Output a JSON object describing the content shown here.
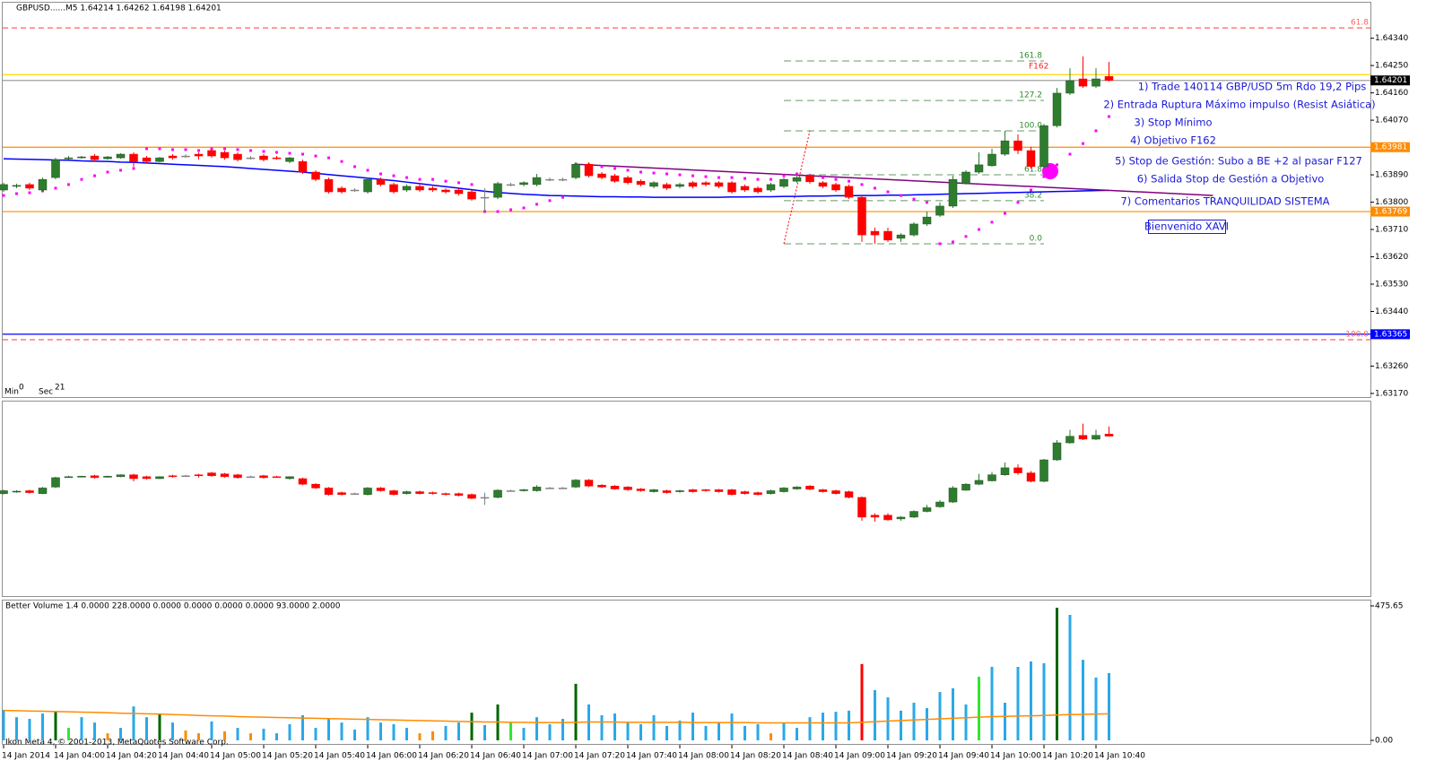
{
  "title": "GBPUSD......M5 1.64214 1.64262 1.64198 1.64201",
  "chart_data": {
    "type": "candlestick",
    "categories": [
      "14 Jan 2014",
      null,
      null,
      null,
      "14 Jan 04:00",
      null,
      null,
      null,
      "14 Jan 04:20",
      null,
      null,
      null,
      "14 Jan 04:40",
      null,
      null,
      null,
      "14 Jan 05:00",
      null,
      null,
      null,
      "14 Jan 05:20",
      null,
      null,
      null,
      "14 Jan 05:40",
      null,
      null,
      null,
      "14 Jan 06:00",
      null,
      null,
      null,
      "14 Jan 06:20",
      null,
      null,
      null,
      "14 Jan 06:40",
      null,
      null,
      null,
      "14 Jan 07:00",
      null,
      null,
      null,
      "14 Jan 07:20",
      null,
      null,
      null,
      "14 Jan 07:40",
      null,
      null,
      null,
      "14 Jan 08:00",
      null,
      null,
      null,
      "14 Jan 08:20",
      null,
      null,
      null,
      "14 Jan 08:40",
      null,
      null,
      null,
      "14 Jan 09:00",
      null,
      null,
      null,
      "14 Jan 09:20",
      null,
      null,
      null,
      "14 Jan 09:40",
      null,
      null,
      null,
      "14 Jan 10:00",
      null,
      null,
      null,
      "14 Jan 10:20",
      null,
      null,
      null,
      "14 Jan 10:40",
      null
    ],
    "open": [
      1.6384,
      1.63852,
      1.63858,
      1.6384,
      1.63881,
      1.63943,
      1.63946,
      1.63952,
      1.63943,
      1.63946,
      1.63958,
      1.63946,
      1.63934,
      1.63952,
      1.63952,
      1.63958,
      1.6397,
      1.63964,
      1.63958,
      1.63946,
      1.63952,
      1.63946,
      1.63934,
      1.63934,
      1.63899,
      1.63875,
      1.63846,
      1.6384,
      1.63834,
      1.63875,
      1.63858,
      1.6384,
      1.63852,
      1.63846,
      1.6384,
      1.6384,
      1.63834,
      1.63816,
      1.63816,
      1.63858,
      1.63858,
      1.63858,
      1.63875,
      1.63875,
      1.63881,
      1.63925,
      1.63893,
      1.63887,
      1.63881,
      1.63869,
      1.63852,
      1.63858,
      1.63852,
      1.63864,
      1.63864,
      1.63864,
      1.63864,
      1.63852,
      1.63846,
      1.6384,
      1.63852,
      1.63869,
      1.63887,
      1.63864,
      1.63858,
      1.63852,
      1.63816,
      1.63704,
      1.63704,
      1.63681,
      1.63692,
      1.63728,
      1.63757,
      1.63787,
      1.63861,
      1.63899,
      1.6392,
      1.63958,
      1.64002,
      1.6397,
      1.63917,
      1.64052,
      1.64159,
      1.64206,
      1.64182,
      1.64214
    ],
    "high": [
      1.63864,
      1.63861,
      1.63864,
      1.63881,
      1.63946,
      1.63952,
      1.63952,
      1.63958,
      1.63952,
      1.63961,
      1.63964,
      1.63952,
      1.63949,
      1.63958,
      1.63958,
      1.63964,
      1.63976,
      1.6397,
      1.63964,
      1.63952,
      1.63958,
      1.63952,
      1.63949,
      1.6394,
      1.63905,
      1.63881,
      1.63852,
      1.63846,
      1.63881,
      1.63881,
      1.63864,
      1.63858,
      1.63858,
      1.63852,
      1.63846,
      1.63846,
      1.6384,
      1.63846,
      1.63867,
      1.63864,
      1.63869,
      1.63893,
      1.63881,
      1.63881,
      1.63931,
      1.63931,
      1.63899,
      1.63893,
      1.63887,
      1.63875,
      1.63869,
      1.63864,
      1.63864,
      1.63869,
      1.63869,
      1.63869,
      1.63869,
      1.63858,
      1.63852,
      1.63864,
      1.63881,
      1.63887,
      1.63893,
      1.63869,
      1.63864,
      1.63858,
      1.63822,
      1.63716,
      1.63716,
      1.63698,
      1.63734,
      1.63769,
      1.63799,
      1.63887,
      1.63905,
      1.63964,
      1.63976,
      1.64035,
      1.64023,
      1.63982,
      1.64058,
      1.64176,
      1.64241,
      1.6428,
      1.64241,
      1.64262
    ],
    "low": [
      1.63834,
      1.63846,
      1.6384,
      1.63837,
      1.63875,
      1.6394,
      1.63943,
      1.63934,
      1.6394,
      1.63943,
      1.63917,
      1.63928,
      1.63931,
      1.6394,
      1.63946,
      1.6394,
      1.63946,
      1.6394,
      1.63934,
      1.6394,
      1.63934,
      1.6394,
      1.63928,
      1.63893,
      1.63869,
      1.63828,
      1.63828,
      1.63834,
      1.63828,
      1.63852,
      1.63828,
      1.63834,
      1.63834,
      1.63834,
      1.63828,
      1.63822,
      1.63805,
      1.63769,
      1.6381,
      1.63852,
      1.63852,
      1.63852,
      1.63869,
      1.63869,
      1.63875,
      1.63881,
      1.63875,
      1.63864,
      1.63858,
      1.63852,
      1.63846,
      1.6384,
      1.63846,
      1.63846,
      1.63852,
      1.63846,
      1.63828,
      1.63834,
      1.63828,
      1.63834,
      1.63846,
      1.63864,
      1.63861,
      1.63846,
      1.63834,
      1.6381,
      1.63669,
      1.63663,
      1.63669,
      1.63669,
      1.63687,
      1.63722,
      1.63751,
      1.63781,
      1.63858,
      1.63893,
      1.63917,
      1.63952,
      1.63958,
      1.63911,
      1.63911,
      1.64046,
      1.64153,
      1.64176,
      1.64176,
      1.64198
    ],
    "close": [
      1.63858,
      1.63855,
      1.63846,
      1.63875,
      1.6394,
      1.63946,
      1.63949,
      1.6394,
      1.63949,
      1.63958,
      1.63934,
      1.63934,
      1.63946,
      1.63946,
      1.63952,
      1.63952,
      1.63952,
      1.63946,
      1.6394,
      1.63946,
      1.6394,
      1.63943,
      1.63946,
      1.63899,
      1.63875,
      1.63834,
      1.63834,
      1.6384,
      1.63875,
      1.63858,
      1.63834,
      1.63852,
      1.6384,
      1.6384,
      1.63834,
      1.63828,
      1.6381,
      1.63816,
      1.63861,
      1.63858,
      1.63864,
      1.63881,
      1.63875,
      1.63875,
      1.63925,
      1.63887,
      1.63881,
      1.63869,
      1.63864,
      1.63858,
      1.63864,
      1.63846,
      1.63858,
      1.63852,
      1.63858,
      1.63852,
      1.63834,
      1.6384,
      1.63834,
      1.63858,
      1.63875,
      1.63881,
      1.63867,
      1.63852,
      1.6384,
      1.63816,
      1.63692,
      1.63692,
      1.63675,
      1.63692,
      1.63728,
      1.63751,
      1.63787,
      1.63875,
      1.63899,
      1.63923,
      1.63958,
      1.64002,
      1.6397,
      1.63917,
      1.64052,
      1.64159,
      1.642,
      1.64182,
      1.64206,
      1.64201
    ],
    "up_color": "#2e7d2e",
    "down_color": "#ff0000",
    "ylim": [
      1.63158,
      1.64457
    ],
    "yticks": [
      {
        "value": 1.6434,
        "label": "1.64340"
      },
      {
        "value": 1.6425,
        "label": "1.64250"
      },
      {
        "value": 1.6416,
        "label": "1.64160"
      },
      {
        "value": 1.6407,
        "label": "1.64070"
      },
      {
        "value": 1.6389,
        "label": "1.63890"
      },
      {
        "value": 1.638,
        "label": "1.63800"
      },
      {
        "value": 1.6371,
        "label": "1.63710"
      },
      {
        "value": 1.6362,
        "label": "1.63620"
      },
      {
        "value": 1.6353,
        "label": "1.63530"
      },
      {
        "value": 1.6344,
        "label": "1.63440"
      },
      {
        "value": 1.6326,
        "label": "1.63260"
      },
      {
        "value": 1.6317,
        "label": "1.63170"
      }
    ],
    "moving_average": {
      "color": "#0000ff",
      "values": [
        1.63943,
        1.63942,
        1.63941,
        1.6394,
        1.63939,
        1.63938,
        1.63936,
        1.63935,
        1.63934,
        1.63932,
        1.63931,
        1.63929,
        1.63927,
        1.63925,
        1.63923,
        1.63921,
        1.63919,
        1.63917,
        1.63914,
        1.63911,
        1.63908,
        1.63905,
        1.63902,
        1.63899,
        1.63895,
        1.63891,
        1.63887,
        1.63883,
        1.63879,
        1.63875,
        1.63871,
        1.63866,
        1.63861,
        1.63856,
        1.63851,
        1.63846,
        1.63841,
        1.63836,
        1.63832,
        1.63829,
        1.63826,
        1.63824,
        1.63822,
        1.63821,
        1.6382,
        1.63819,
        1.63818,
        1.63818,
        1.63817,
        1.63817,
        1.63816,
        1.63816,
        1.63816,
        1.63816,
        1.63816,
        1.63816,
        1.63817,
        1.63817,
        1.63818,
        1.63818,
        1.63819,
        1.63819,
        1.6382,
        1.6382,
        1.63821,
        1.63821,
        1.63822,
        1.63822,
        1.63823,
        1.63823,
        1.63824,
        1.63825,
        1.63826,
        1.63827,
        1.63828,
        1.63829,
        1.6383,
        1.63831,
        1.63832,
        1.63833,
        1.63834,
        1.63835,
        1.63836,
        1.63837,
        1.63838,
        1.63839
      ]
    },
    "trendline": {
      "color": "#800080",
      "x": [
        44,
        93
      ],
      "y": [
        1.63925,
        1.63822
      ]
    },
    "sar": {
      "color": "#ff00ff",
      "values": [
        1.63822,
        1.63828,
        1.63831,
        1.63837,
        1.63846,
        1.63858,
        1.63875,
        1.63887,
        1.63899,
        1.63905,
        1.63911,
        1.63976,
        1.63976,
        1.63973,
        1.63973,
        1.6397,
        1.63976,
        1.63976,
        1.63973,
        1.6397,
        1.63967,
        1.63964,
        1.63961,
        1.63958,
        1.63952,
        1.63946,
        1.63934,
        1.63917,
        1.63905,
        1.63893,
        1.63887,
        1.63881,
        1.63875,
        1.63875,
        1.63869,
        1.63864,
        1.63858,
        1.63769,
        1.63769,
        1.63775,
        1.63781,
        1.63793,
        1.63805,
        1.63816,
        1.63925,
        1.63923,
        1.63917,
        1.63911,
        1.63905,
        1.63899,
        1.63896,
        1.63893,
        1.6389,
        1.63887,
        1.63884,
        1.63881,
        1.63881,
        1.63878,
        1.63875,
        1.63875,
        1.63887,
        1.63893,
        1.63887,
        1.63881,
        1.63875,
        1.63869,
        1.63858,
        1.63846,
        1.63834,
        1.63822,
        1.6381,
        1.63799,
        1.63663,
        1.63669,
        1.63687,
        1.6371,
        1.63734,
        1.63763,
        1.63799,
        1.6384,
        1.63884,
        1.63923,
        1.63958,
        1.63993,
        1.64035,
        1.64082
      ]
    },
    "levels": [
      {
        "price": 1.64374,
        "color": "#ff6060",
        "dashed": true,
        "label": "61.8"
      },
      {
        "price": 1.6422,
        "color": "#ffd700",
        "dashed": false
      },
      {
        "price": 1.64201,
        "color": "#a0a0a0",
        "dashed": false,
        "tag": "#000000"
      },
      {
        "price": 1.63981,
        "color": "#ff8c00",
        "dashed": false,
        "tag": "#ff8c00"
      },
      {
        "price": 1.63769,
        "color": "#ff8c00",
        "dashed": false,
        "tag": "#ff8c00"
      },
      {
        "price": 1.63365,
        "color": "#0000ff",
        "dashed": false,
        "tag": "#0000ff"
      },
      {
        "price": 1.63347,
        "color": "#ff6060",
        "dashed": true,
        "label": "100.0"
      }
    ],
    "fibonacci": {
      "color": "#669966",
      "label_color": "#2e8b2e",
      "x": [
        60,
        80
      ],
      "anchor": [
        1.63663,
        1.64035
      ],
      "levels": [
        {
          "price": 1.64265,
          "label": "161.8"
        },
        {
          "price": 1.64135,
          "label": "127.2"
        },
        {
          "price": 1.64035,
          "label": "100.0"
        },
        {
          "price": 1.6389,
          "label": "61.8"
        },
        {
          "price": 1.63805,
          "label": "38.2"
        },
        {
          "price": 1.63663,
          "label": "0.0"
        }
      ]
    },
    "osc_ylim": [
      1.63196,
      1.64424
    ],
    "volume": {
      "title": "Better Volume 1.4 0.0000 228.0000 0.0000 0.0000 0.0000 0.0000 93.0000 2.0000",
      "values": [
        108,
        82,
        76,
        95,
        101,
        44,
        82,
        63,
        25,
        44,
        120,
        82,
        95,
        63,
        35,
        25,
        67,
        32,
        44,
        25,
        41,
        25,
        57,
        89,
        44,
        76,
        63,
        38,
        82,
        63,
        57,
        44,
        25,
        32,
        51,
        63,
        98,
        54,
        127,
        63,
        44,
        82,
        57,
        76,
        200,
        127,
        89,
        95,
        63,
        57,
        89,
        51,
        70,
        98,
        51,
        63,
        95,
        51,
        57,
        25,
        63,
        44,
        82,
        98,
        101,
        105,
        270,
        178,
        152,
        105,
        133,
        114,
        171,
        184,
        127,
        225,
        260,
        133,
        260,
        279,
        273,
        469,
        444,
        285,
        222,
        238
      ],
      "colors": [
        "#29a8ea",
        "#29a8ea",
        "#29a8ea",
        "#29a8ea",
        "#006400",
        "#32e632",
        "#29a8ea",
        "#29a8ea",
        "#ff8c00",
        "#29a8ea",
        "#29a8ea",
        "#29a8ea",
        "#006400",
        "#29a8ea",
        "#ff8c00",
        "#ff8c00",
        "#29a8ea",
        "#ff8c00",
        "#29a8ea",
        "#ff8c00",
        "#29a8ea",
        "#29a8ea",
        "#29a8ea",
        "#29a8ea",
        "#29a8ea",
        "#29a8ea",
        "#29a8ea",
        "#29a8ea",
        "#29a8ea",
        "#29a8ea",
        "#29a8ea",
        "#29a8ea",
        "#ff8c00",
        "#ff8c00",
        "#29a8ea",
        "#29a8ea",
        "#006400",
        "#29a8ea",
        "#006400",
        "#32e632",
        "#29a8ea",
        "#29a8ea",
        "#29a8ea",
        "#29a8ea",
        "#006400",
        "#29a8ea",
        "#29a8ea",
        "#29a8ea",
        "#29a8ea",
        "#29a8ea",
        "#29a8ea",
        "#29a8ea",
        "#29a8ea",
        "#29a8ea",
        "#29a8ea",
        "#29a8ea",
        "#29a8ea",
        "#29a8ea",
        "#29a8ea",
        "#ff8c00",
        "#29a8ea",
        "#29a8ea",
        "#29a8ea",
        "#29a8ea",
        "#29a8ea",
        "#29a8ea",
        "#ff0000",
        "#29a8ea",
        "#29a8ea",
        "#29a8ea",
        "#29a8ea",
        "#29a8ea",
        "#29a8ea",
        "#29a8ea",
        "#29a8ea",
        "#32e632",
        "#29a8ea",
        "#29a8ea",
        "#29a8ea",
        "#29a8ea",
        "#29a8ea",
        "#006400",
        "#29a8ea",
        "#29a8ea",
        "#29a8ea",
        "#29a8ea"
      ],
      "ma": {
        "color": "#ff8c00",
        "values": [
          106,
          105,
          104,
          103,
          102,
          101,
          100,
          99,
          98,
          96,
          95,
          94,
          93,
          91,
          90,
          88,
          87,
          86,
          84,
          83,
          82,
          81,
          80,
          79,
          78,
          77,
          76,
          75,
          74,
          73,
          72,
          71,
          70,
          69,
          68,
          67,
          66,
          65,
          65,
          64,
          64,
          63,
          63,
          63,
          64,
          65,
          65,
          65,
          64,
          64,
          64,
          64,
          64,
          63,
          63,
          63,
          63,
          63,
          62,
          62,
          62,
          62,
          62,
          62,
          62,
          62,
          64,
          66,
          68,
          70,
          72,
          74,
          76,
          78,
          80,
          82,
          84,
          85,
          86,
          87,
          88,
          90,
          91,
          92,
          93,
          94
        ]
      },
      "ylim": [
        0,
        475.65
      ],
      "yticks": [
        475.65,
        {
          "value": 0,
          "label": "0.00"
        }
      ]
    }
  },
  "annotations": {
    "f162": "F162",
    "notes": [
      "1) Trade 140114 GBP/USD 5m Rdo 19,2 Pips",
      "2) Entrada Ruptura Máximo impulso (Resist Asiática)",
      "3) Stop Mínimo",
      "4) Objetivo F162",
      "5) Stop de Gestión: Subo a BE +2 al pasar F127",
      "6) Salida Stop de Gestión a Objetivo",
      "7) Comentarios TRANQUILIDAD SISTEMA"
    ],
    "greeting": "Bienvenido XAVI"
  },
  "timer": {
    "min_label": "Min",
    "min": 0,
    "sec_label": "Sec",
    "sec": 21
  },
  "footer": "Ikon Meta 4, © 2001-2013, MetaQuotes Software Corp."
}
